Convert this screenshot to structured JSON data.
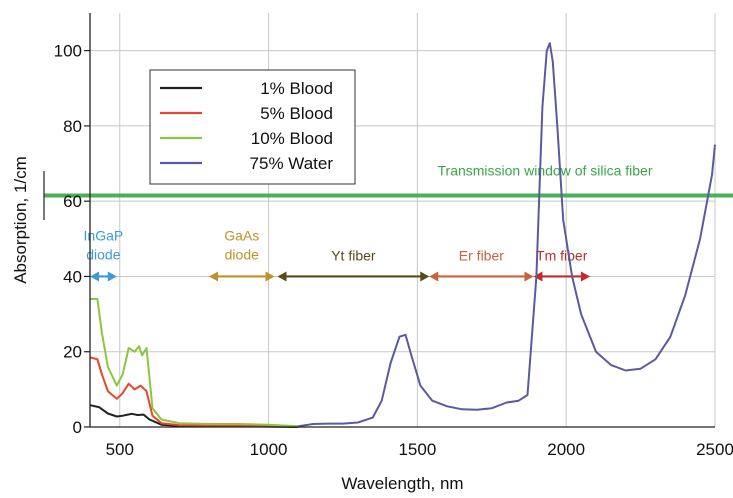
{
  "chart_data": {
    "type": "line",
    "xlabel": "Wavelength, nm",
    "ylabel": "Absorption, 1/cm",
    "xlim": [
      400,
      2500
    ],
    "ylim": [
      0,
      110
    ],
    "x_ticks": [
      500,
      1000,
      1500,
      2000,
      2500
    ],
    "x_tick_labels": [
      "500",
      "1000",
      "1500",
      "2000",
      "2500"
    ],
    "y_ticks": [
      0,
      20,
      40,
      60,
      80,
      100
    ],
    "y_tick_labels": [
      "0",
      "20",
      "40",
      "60",
      "80",
      "100"
    ],
    "grid": true,
    "legend_position": "upper-left",
    "series": [
      {
        "name": "1% Blood",
        "color": "#222222",
        "points": [
          [
            400,
            5.8
          ],
          [
            430,
            5.3
          ],
          [
            460,
            3.6
          ],
          [
            490,
            2.8
          ],
          [
            510,
            3.0
          ],
          [
            540,
            3.5
          ],
          [
            560,
            3.2
          ],
          [
            580,
            3.3
          ],
          [
            600,
            2.0
          ],
          [
            640,
            0.6
          ],
          [
            700,
            0.3
          ],
          [
            800,
            0.2
          ],
          [
            900,
            0.2
          ],
          [
            1000,
            0.1
          ],
          [
            1100,
            0.0
          ]
        ]
      },
      {
        "name": "5% Blood",
        "color": "#e8462e",
        "points": [
          [
            400,
            18.5
          ],
          [
            425,
            18.0
          ],
          [
            440,
            14.0
          ],
          [
            460,
            9.5
          ],
          [
            490,
            7.5
          ],
          [
            510,
            9.0
          ],
          [
            530,
            11.5
          ],
          [
            550,
            10.0
          ],
          [
            570,
            11.0
          ],
          [
            590,
            9.5
          ],
          [
            610,
            3.0
          ],
          [
            640,
            1.0
          ],
          [
            700,
            0.5
          ],
          [
            800,
            0.4
          ],
          [
            900,
            0.4
          ],
          [
            1000,
            0.3
          ],
          [
            1100,
            0.1
          ]
        ]
      },
      {
        "name": "10% Blood",
        "color": "#8cc63f",
        "points": [
          [
            400,
            34.0
          ],
          [
            425,
            34.0
          ],
          [
            440,
            25.0
          ],
          [
            460,
            16.0
          ],
          [
            490,
            11.0
          ],
          [
            510,
            14.0
          ],
          [
            530,
            21.0
          ],
          [
            550,
            20.0
          ],
          [
            565,
            21.5
          ],
          [
            575,
            19.0
          ],
          [
            590,
            21.0
          ],
          [
            610,
            5.0
          ],
          [
            640,
            2.0
          ],
          [
            700,
            1.0
          ],
          [
            800,
            0.8
          ],
          [
            900,
            0.8
          ],
          [
            1000,
            0.6
          ],
          [
            1100,
            0.2
          ]
        ]
      },
      {
        "name": "75% Water",
        "color": "#5b5aa0",
        "points": [
          [
            1100,
            0.2
          ],
          [
            1150,
            0.8
          ],
          [
            1200,
            0.9
          ],
          [
            1250,
            0.9
          ],
          [
            1300,
            1.2
          ],
          [
            1350,
            2.5
          ],
          [
            1380,
            7.0
          ],
          [
            1410,
            17.0
          ],
          [
            1440,
            24.0
          ],
          [
            1460,
            24.5
          ],
          [
            1480,
            19.0
          ],
          [
            1510,
            11.0
          ],
          [
            1550,
            7.0
          ],
          [
            1600,
            5.5
          ],
          [
            1650,
            4.7
          ],
          [
            1700,
            4.6
          ],
          [
            1750,
            5.0
          ],
          [
            1800,
            6.5
          ],
          [
            1840,
            7.0
          ],
          [
            1870,
            8.5
          ],
          [
            1900,
            40.0
          ],
          [
            1920,
            85.0
          ],
          [
            1935,
            100.0
          ],
          [
            1945,
            102.0
          ],
          [
            1955,
            97.0
          ],
          [
            1970,
            80.0
          ],
          [
            1990,
            55.0
          ],
          [
            2020,
            40.0
          ],
          [
            2050,
            30.0
          ],
          [
            2100,
            20.0
          ],
          [
            2150,
            16.5
          ],
          [
            2200,
            15.0
          ],
          [
            2250,
            15.5
          ],
          [
            2300,
            18.0
          ],
          [
            2350,
            24.0
          ],
          [
            2400,
            35.0
          ],
          [
            2450,
            50.0
          ],
          [
            2490,
            67.0
          ],
          [
            2500,
            75.0
          ]
        ]
      }
    ],
    "reference_line": {
      "y": 61.5,
      "label": "Transmission window of silica fiber",
      "color": "#3aa64a"
    },
    "ranges": [
      {
        "label_lines": [
          "InGaP",
          "diode"
        ],
        "x_start": 400,
        "x_end": 490,
        "y": 40,
        "color": "#3a9bd6"
      },
      {
        "label_lines": [
          "GaAs",
          "diode"
        ],
        "x_start": 800,
        "x_end": 1020,
        "y": 40,
        "color": "#c0902b"
      },
      {
        "label_lines": [
          "Yt fiber"
        ],
        "x_start": 1030,
        "x_end": 1540,
        "y": 40,
        "color": "#5a4a1a"
      },
      {
        "label_lines": [
          "Er fiber"
        ],
        "x_start": 1540,
        "x_end": 1890,
        "y": 40,
        "color": "#c9623a"
      },
      {
        "label_lines": [
          "Tm fiber"
        ],
        "x_start": 1890,
        "x_end": 2080,
        "y": 40,
        "color": "#c42a2a"
      }
    ]
  }
}
